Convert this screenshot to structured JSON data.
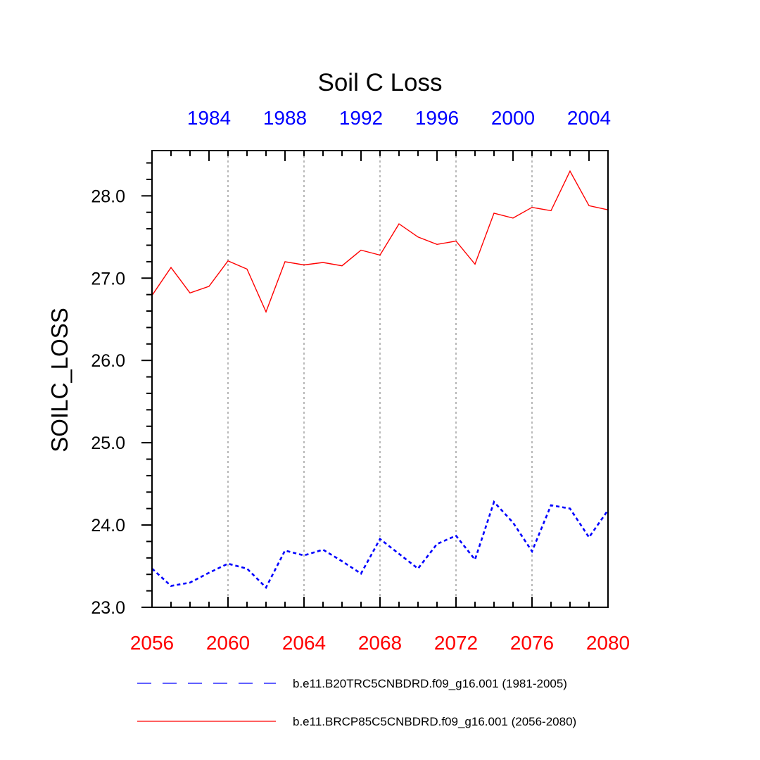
{
  "chart_data": {
    "type": "line",
    "title": "Soil C Loss",
    "ylabel": "SOILC_LOSS",
    "ylim": [
      23.0,
      28.55
    ],
    "yticks": [
      23.0,
      24.0,
      25.0,
      26.0,
      27.0,
      28.0
    ],
    "ytick_labels": [
      "23.0",
      "24.0",
      "25.0",
      "26.0",
      "27.0",
      "28.0"
    ],
    "bottom_axis": {
      "range": [
        2056,
        2080
      ],
      "ticks": [
        2056,
        2060,
        2064,
        2068,
        2072,
        2076,
        2080
      ],
      "tick_labels": [
        "2056",
        "2060",
        "2064",
        "2068",
        "2072",
        "2076",
        "2080"
      ],
      "color": "#ff0000"
    },
    "top_axis": {
      "range": [
        1981,
        2005
      ],
      "ticks": [
        1984,
        1988,
        1992,
        1996,
        2000,
        2004
      ],
      "tick_labels": [
        "1984",
        "1988",
        "1992",
        "1996",
        "2000",
        "2004"
      ],
      "color": "#0000ff"
    },
    "grid": "vertical dotted at bottom-axis major ticks",
    "series": [
      {
        "name": "b.e11.B20TRC5CNBDRD.f09_g16.001 (1981-2005)",
        "color": "#0000ff",
        "style": "dashed",
        "x": [
          2056,
          2057,
          2058,
          2059,
          2060,
          2061,
          2062,
          2063,
          2064,
          2065,
          2066,
          2067,
          2068,
          2069,
          2070,
          2071,
          2072,
          2073,
          2074,
          2075,
          2076,
          2077,
          2078,
          2079,
          2080
        ],
        "values": [
          23.47,
          23.26,
          23.3,
          23.42,
          23.53,
          23.47,
          23.24,
          23.69,
          23.63,
          23.7,
          23.56,
          23.41,
          23.83,
          23.65,
          23.47,
          23.77,
          23.87,
          23.58,
          24.28,
          24.03,
          23.68,
          24.24,
          24.2,
          23.85,
          24.18
        ]
      },
      {
        "name": "b.e11.BRCP85C5CNBDRD.f09_g16.001 (2056-2080)",
        "color": "#ff0000",
        "style": "solid",
        "x": [
          2056,
          2057,
          2058,
          2059,
          2060,
          2061,
          2062,
          2063,
          2064,
          2065,
          2066,
          2067,
          2068,
          2069,
          2070,
          2071,
          2072,
          2073,
          2074,
          2075,
          2076,
          2077,
          2078,
          2079,
          2080
        ],
        "values": [
          26.79,
          27.13,
          26.82,
          26.9,
          27.21,
          27.11,
          26.59,
          27.2,
          27.16,
          27.19,
          27.15,
          27.34,
          27.28,
          27.66,
          27.5,
          27.41,
          27.45,
          27.17,
          27.79,
          27.73,
          27.86,
          27.82,
          28.3,
          27.88,
          27.83
        ]
      }
    ],
    "legend_position": "bottom"
  }
}
